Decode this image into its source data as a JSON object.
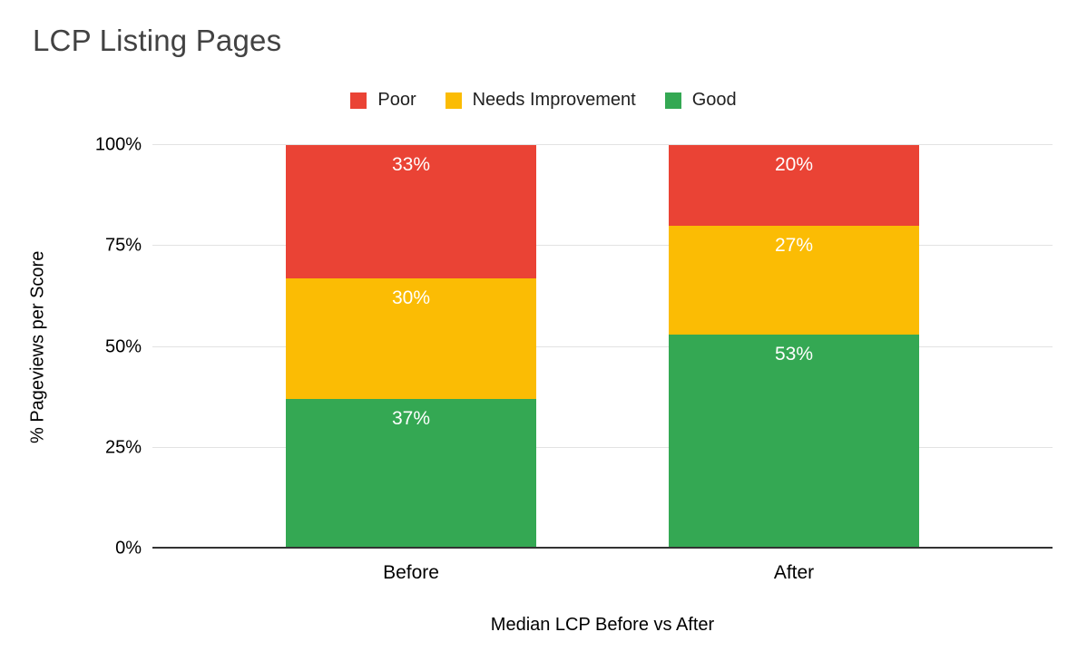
{
  "title": "LCP Listing Pages",
  "chart_data": {
    "type": "bar",
    "stacked": true,
    "title": "LCP Listing Pages",
    "xlabel": "Median LCP Before vs After",
    "ylabel": "% Pageviews per Score",
    "categories": [
      "Before",
      "After"
    ],
    "series": [
      {
        "name": "Good",
        "color": "#34A853",
        "values": [
          37,
          53
        ]
      },
      {
        "name": "Needs Improvement",
        "color": "#FBBC04",
        "values": [
          30,
          27
        ]
      },
      {
        "name": "Poor",
        "color": "#EA4335",
        "values": [
          33,
          20
        ]
      }
    ],
    "legend_order": [
      "Poor",
      "Needs Improvement",
      "Good"
    ],
    "legend_position": "top",
    "grid": true,
    "ylim": [
      0,
      100
    ],
    "yticks": [
      "0%",
      "25%",
      "50%",
      "75%",
      "100%"
    ],
    "value_suffix": "%"
  }
}
